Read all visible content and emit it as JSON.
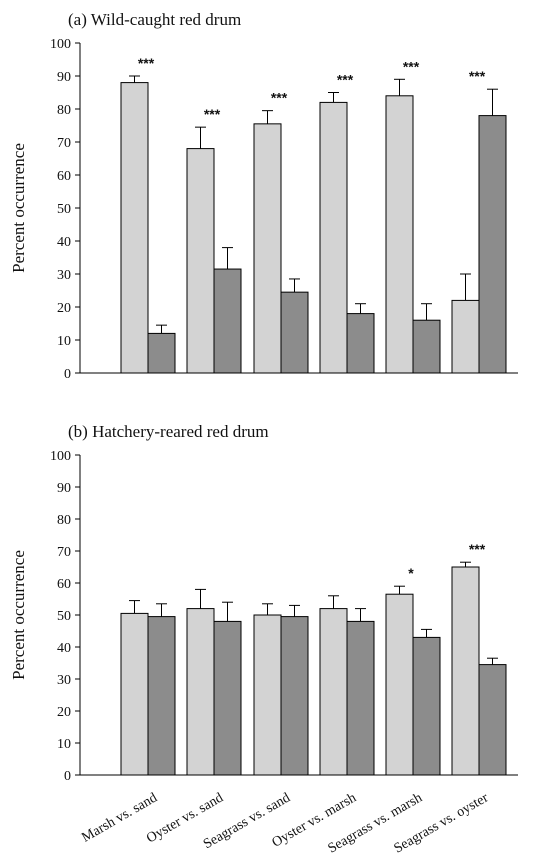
{
  "chart_data": [
    {
      "type": "bar",
      "title": "(a) Wild-caught red drum",
      "xlabel": "",
      "ylabel": "Percent occurrence",
      "ylim": [
        0,
        100
      ],
      "yticks": [
        0,
        10,
        20,
        30,
        40,
        50,
        60,
        70,
        80,
        90,
        100
      ],
      "categories": [
        "Marsh vs. sand",
        "Oyster vs. sand",
        "Seagrass vs. sand",
        "Oyster vs. marsh",
        "Seagrass vs. marsh",
        "Seagrass vs. oyster"
      ],
      "show_category_labels": false,
      "series": [
        {
          "values": [
            88,
            68,
            75.5,
            82,
            84,
            22
          ],
          "errors": [
            2,
            6.5,
            4,
            3,
            5,
            8
          ],
          "color": "#d3d3d3"
        },
        {
          "values": [
            12,
            31.5,
            24.5,
            18,
            16,
            78
          ],
          "errors": [
            2.5,
            6.5,
            4,
            3,
            5,
            8
          ],
          "color": "#8c8c8c"
        }
      ],
      "significance": [
        "***",
        "***",
        "***",
        "***",
        "***",
        "***"
      ]
    },
    {
      "type": "bar",
      "title": "(b) Hatchery-reared red drum",
      "xlabel": "",
      "ylabel": "Percent occurrence",
      "ylim": [
        0,
        100
      ],
      "yticks": [
        0,
        10,
        20,
        30,
        40,
        50,
        60,
        70,
        80,
        90,
        100
      ],
      "categories": [
        "Marsh vs. sand",
        "Oyster vs. sand",
        "Seagrass vs. sand",
        "Oyster vs. marsh",
        "Seagrass vs. marsh",
        "Seagrass vs. oyster"
      ],
      "show_category_labels": true,
      "series": [
        {
          "values": [
            50.5,
            52,
            50,
            52,
            56.5,
            65
          ],
          "errors": [
            4,
            6,
            3.5,
            4,
            2.5,
            1.5
          ],
          "color": "#d3d3d3"
        },
        {
          "values": [
            49.5,
            48,
            49.5,
            48,
            43,
            34.5
          ],
          "errors": [
            4,
            6,
            3.5,
            4,
            2.5,
            2
          ],
          "color": "#8c8c8c"
        }
      ],
      "significance": [
        "",
        "",
        "",
        "",
        "*",
        "***"
      ]
    }
  ]
}
